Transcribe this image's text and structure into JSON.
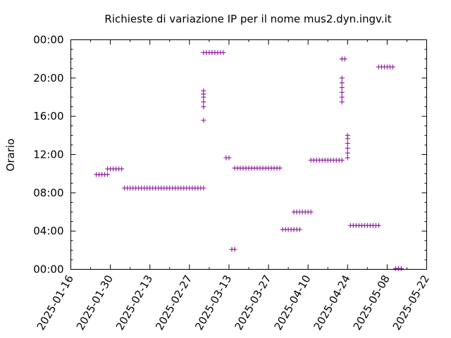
{
  "chart_data": {
    "type": "scatter",
    "title": "Richieste di variazione IP per il nome mus2.dyn.ingv.it",
    "xlabel": "",
    "ylabel": "Orario",
    "x_type": "date",
    "xlim": [
      "2025-01-16",
      "2025-05-22"
    ],
    "x_ticks": [
      "2025-01-16",
      "2025-01-30",
      "2025-02-13",
      "2025-02-27",
      "2025-03-13",
      "2025-03-27",
      "2025-04-10",
      "2025-04-24",
      "2025-05-08",
      "2025-05-22"
    ],
    "y_type": "time-of-day",
    "ylim": [
      "00:00",
      "24:00"
    ],
    "y_ticks": [
      "00:00",
      "04:00",
      "08:00",
      "12:00",
      "16:00",
      "20:00",
      "24:00"
    ],
    "y_tick_labels": [
      "00:00",
      "04:00",
      "08:00",
      "12:00",
      "16:00",
      "20:00",
      "00:00"
    ],
    "grid": false,
    "legend": "none",
    "marker": "plus",
    "color": "#8b1a9b",
    "points": [
      {
        "x": "2025-01-25",
        "y": "09:55"
      },
      {
        "x": "2025-01-26",
        "y": "09:55"
      },
      {
        "x": "2025-01-27",
        "y": "09:55"
      },
      {
        "x": "2025-01-28",
        "y": "09:55"
      },
      {
        "x": "2025-01-29",
        "y": "09:55"
      },
      {
        "x": "2025-01-29",
        "y": "10:30"
      },
      {
        "x": "2025-01-30",
        "y": "10:30"
      },
      {
        "x": "2025-01-31",
        "y": "10:30"
      },
      {
        "x": "2025-02-01",
        "y": "10:30"
      },
      {
        "x": "2025-02-02",
        "y": "10:30"
      },
      {
        "x": "2025-02-03",
        "y": "10:30"
      },
      {
        "x": "2025-02-04",
        "y": "08:30"
      },
      {
        "x": "2025-02-05",
        "y": "08:30"
      },
      {
        "x": "2025-02-06",
        "y": "08:30"
      },
      {
        "x": "2025-02-07",
        "y": "08:30"
      },
      {
        "x": "2025-02-08",
        "y": "08:30"
      },
      {
        "x": "2025-02-09",
        "y": "08:30"
      },
      {
        "x": "2025-02-10",
        "y": "08:30"
      },
      {
        "x": "2025-02-11",
        "y": "08:30"
      },
      {
        "x": "2025-02-12",
        "y": "08:30"
      },
      {
        "x": "2025-02-13",
        "y": "08:30"
      },
      {
        "x": "2025-02-14",
        "y": "08:30"
      },
      {
        "x": "2025-02-15",
        "y": "08:30"
      },
      {
        "x": "2025-02-16",
        "y": "08:30"
      },
      {
        "x": "2025-02-17",
        "y": "08:30"
      },
      {
        "x": "2025-02-18",
        "y": "08:30"
      },
      {
        "x": "2025-02-19",
        "y": "08:30"
      },
      {
        "x": "2025-02-20",
        "y": "08:30"
      },
      {
        "x": "2025-02-21",
        "y": "08:30"
      },
      {
        "x": "2025-02-22",
        "y": "08:30"
      },
      {
        "x": "2025-02-23",
        "y": "08:30"
      },
      {
        "x": "2025-02-24",
        "y": "08:30"
      },
      {
        "x": "2025-02-25",
        "y": "08:30"
      },
      {
        "x": "2025-02-26",
        "y": "08:30"
      },
      {
        "x": "2025-02-27",
        "y": "08:30"
      },
      {
        "x": "2025-02-28",
        "y": "08:30"
      },
      {
        "x": "2025-03-01",
        "y": "08:30"
      },
      {
        "x": "2025-03-02",
        "y": "08:30"
      },
      {
        "x": "2025-03-03",
        "y": "08:30"
      },
      {
        "x": "2025-03-04",
        "y": "08:30"
      },
      {
        "x": "2025-03-04",
        "y": "15:35"
      },
      {
        "x": "2025-03-04",
        "y": "17:00"
      },
      {
        "x": "2025-03-04",
        "y": "17:30"
      },
      {
        "x": "2025-03-04",
        "y": "18:00"
      },
      {
        "x": "2025-03-04",
        "y": "18:20"
      },
      {
        "x": "2025-03-04",
        "y": "18:40"
      },
      {
        "x": "2025-03-04",
        "y": "22:40"
      },
      {
        "x": "2025-03-05",
        "y": "22:40"
      },
      {
        "x": "2025-03-06",
        "y": "22:40"
      },
      {
        "x": "2025-03-07",
        "y": "22:40"
      },
      {
        "x": "2025-03-08",
        "y": "22:40"
      },
      {
        "x": "2025-03-09",
        "y": "22:40"
      },
      {
        "x": "2025-03-10",
        "y": "22:40"
      },
      {
        "x": "2025-03-11",
        "y": "22:40"
      },
      {
        "x": "2025-03-12",
        "y": "11:40"
      },
      {
        "x": "2025-03-13",
        "y": "11:40"
      },
      {
        "x": "2025-03-14",
        "y": "02:05"
      },
      {
        "x": "2025-03-15",
        "y": "02:05"
      },
      {
        "x": "2025-03-15",
        "y": "10:35"
      },
      {
        "x": "2025-03-16",
        "y": "10:35"
      },
      {
        "x": "2025-03-17",
        "y": "10:35"
      },
      {
        "x": "2025-03-18",
        "y": "10:35"
      },
      {
        "x": "2025-03-19",
        "y": "10:35"
      },
      {
        "x": "2025-03-20",
        "y": "10:35"
      },
      {
        "x": "2025-03-21",
        "y": "10:35"
      },
      {
        "x": "2025-03-22",
        "y": "10:35"
      },
      {
        "x": "2025-03-23",
        "y": "10:35"
      },
      {
        "x": "2025-03-24",
        "y": "10:35"
      },
      {
        "x": "2025-03-25",
        "y": "10:35"
      },
      {
        "x": "2025-03-26",
        "y": "10:35"
      },
      {
        "x": "2025-03-27",
        "y": "10:35"
      },
      {
        "x": "2025-03-28",
        "y": "10:35"
      },
      {
        "x": "2025-03-29",
        "y": "10:35"
      },
      {
        "x": "2025-03-30",
        "y": "10:35"
      },
      {
        "x": "2025-03-31",
        "y": "10:35"
      },
      {
        "x": "2025-04-01",
        "y": "04:10"
      },
      {
        "x": "2025-04-02",
        "y": "04:10"
      },
      {
        "x": "2025-04-03",
        "y": "04:10"
      },
      {
        "x": "2025-04-04",
        "y": "04:10"
      },
      {
        "x": "2025-04-05",
        "y": "04:10"
      },
      {
        "x": "2025-04-06",
        "y": "04:10"
      },
      {
        "x": "2025-04-07",
        "y": "04:10"
      },
      {
        "x": "2025-04-05",
        "y": "06:00"
      },
      {
        "x": "2025-04-06",
        "y": "06:00"
      },
      {
        "x": "2025-04-07",
        "y": "06:00"
      },
      {
        "x": "2025-04-08",
        "y": "06:00"
      },
      {
        "x": "2025-04-09",
        "y": "06:00"
      },
      {
        "x": "2025-04-10",
        "y": "06:00"
      },
      {
        "x": "2025-04-11",
        "y": "06:00"
      },
      {
        "x": "2025-04-11",
        "y": "11:25"
      },
      {
        "x": "2025-04-12",
        "y": "11:25"
      },
      {
        "x": "2025-04-13",
        "y": "11:25"
      },
      {
        "x": "2025-04-14",
        "y": "11:25"
      },
      {
        "x": "2025-04-15",
        "y": "11:25"
      },
      {
        "x": "2025-04-16",
        "y": "11:25"
      },
      {
        "x": "2025-04-17",
        "y": "11:25"
      },
      {
        "x": "2025-04-18",
        "y": "11:25"
      },
      {
        "x": "2025-04-19",
        "y": "11:25"
      },
      {
        "x": "2025-04-20",
        "y": "11:25"
      },
      {
        "x": "2025-04-21",
        "y": "11:25"
      },
      {
        "x": "2025-04-22",
        "y": "11:25"
      },
      {
        "x": "2025-04-22",
        "y": "17:30"
      },
      {
        "x": "2025-04-22",
        "y": "18:00"
      },
      {
        "x": "2025-04-22",
        "y": "18:30"
      },
      {
        "x": "2025-04-22",
        "y": "19:00"
      },
      {
        "x": "2025-04-22",
        "y": "19:30"
      },
      {
        "x": "2025-04-22",
        "y": "20:00"
      },
      {
        "x": "2025-04-22",
        "y": "22:00"
      },
      {
        "x": "2025-04-23",
        "y": "22:00"
      },
      {
        "x": "2025-04-24",
        "y": "11:40"
      },
      {
        "x": "2025-04-24",
        "y": "12:10"
      },
      {
        "x": "2025-04-24",
        "y": "12:40"
      },
      {
        "x": "2025-04-24",
        "y": "13:10"
      },
      {
        "x": "2025-04-24",
        "y": "13:40"
      },
      {
        "x": "2025-04-24",
        "y": "14:00"
      },
      {
        "x": "2025-04-25",
        "y": "04:35"
      },
      {
        "x": "2025-04-26",
        "y": "04:35"
      },
      {
        "x": "2025-04-27",
        "y": "04:35"
      },
      {
        "x": "2025-04-28",
        "y": "04:35"
      },
      {
        "x": "2025-04-29",
        "y": "04:35"
      },
      {
        "x": "2025-04-30",
        "y": "04:35"
      },
      {
        "x": "2025-05-01",
        "y": "04:35"
      },
      {
        "x": "2025-05-02",
        "y": "04:35"
      },
      {
        "x": "2025-05-03",
        "y": "04:35"
      },
      {
        "x": "2025-05-04",
        "y": "04:35"
      },
      {
        "x": "2025-05-05",
        "y": "04:35"
      },
      {
        "x": "2025-05-05",
        "y": "21:10"
      },
      {
        "x": "2025-05-06",
        "y": "21:10"
      },
      {
        "x": "2025-05-07",
        "y": "21:10"
      },
      {
        "x": "2025-05-08",
        "y": "21:10"
      },
      {
        "x": "2025-05-09",
        "y": "21:10"
      },
      {
        "x": "2025-05-10",
        "y": "21:10"
      },
      {
        "x": "2025-05-11",
        "y": "00:05"
      },
      {
        "x": "2025-05-12",
        "y": "00:05"
      },
      {
        "x": "2025-05-13",
        "y": "00:05"
      }
    ]
  }
}
